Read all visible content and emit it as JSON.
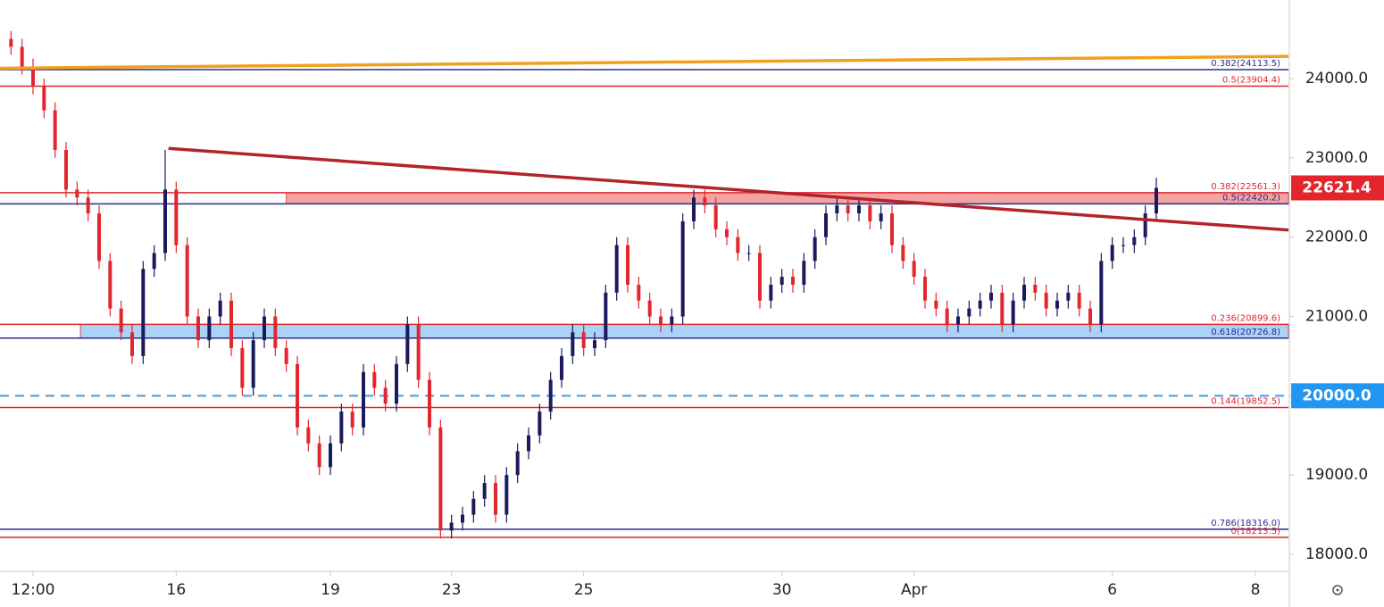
{
  "chart_data": {
    "type": "candlestick",
    "up_color": "#1b1a5c",
    "down_color": "#e3262e",
    "xlim": [
      -1,
      116
    ],
    "ylim": [
      17786,
      24991
    ],
    "xticks": [
      {
        "value": 2,
        "label": "12:00"
      },
      {
        "value": 15,
        "label": "16"
      },
      {
        "value": 29,
        "label": "19"
      },
      {
        "value": 40,
        "label": "23"
      },
      {
        "value": 52,
        "label": "25"
      },
      {
        "value": 70,
        "label": "30"
      },
      {
        "value": 82,
        "label": "Apr"
      },
      {
        "value": 100,
        "label": "6"
      },
      {
        "value": 113,
        "label": "8"
      }
    ],
    "yticks": [
      {
        "value": 18000,
        "label": "18000.0"
      },
      {
        "value": 19000,
        "label": "19000.0"
      },
      {
        "value": 20000,
        "label": "20000.0"
      },
      {
        "value": 21000,
        "label": "21000.0"
      },
      {
        "value": 22000,
        "label": "22000.0"
      },
      {
        "value": 23000,
        "label": "23000.0"
      },
      {
        "value": 24000,
        "label": "24000.0"
      }
    ],
    "open": [
      24500,
      24400,
      24150,
      23900,
      23600,
      23100,
      22600,
      22500,
      22300,
      21700,
      21100,
      20800,
      20500,
      21600,
      21800,
      22600,
      21900,
      21000,
      20700,
      21000,
      21200,
      20600,
      20100,
      20700,
      21000,
      20600,
      20400,
      19600,
      19400,
      19100,
      19400,
      19800,
      19600,
      20300,
      20100,
      19900,
      20400,
      20900,
      20200,
      19600,
      18300,
      18400,
      18500,
      18700,
      18900,
      18500,
      19000,
      19300,
      19500,
      19800,
      20200,
      20500,
      20800,
      20600,
      20700,
      21300,
      21900,
      21400,
      21200,
      21000,
      20900,
      21000,
      22200,
      22500,
      22400,
      22100,
      22000,
      21800,
      21800,
      21200,
      21400,
      21500,
      21400,
      21700,
      22000,
      22300,
      22400,
      22300,
      22400,
      22200,
      22300,
      21900,
      21700,
      21500,
      21200,
      21100,
      20900,
      21000,
      21100,
      21200,
      21300,
      20900,
      21200,
      21400,
      21300,
      21100,
      21200,
      21300,
      21100,
      20900,
      21700,
      21900,
      21900,
      22000,
      22300
    ],
    "high": [
      24600,
      24500,
      24250,
      24000,
      23700,
      23200,
      22700,
      22600,
      22400,
      21800,
      21200,
      20900,
      21700,
      21900,
      23100,
      22700,
      22000,
      21100,
      21100,
      21300,
      21300,
      20700,
      20800,
      21100,
      21100,
      20700,
      20500,
      19700,
      19500,
      19500,
      19900,
      19900,
      20400,
      20400,
      20200,
      20500,
      21000,
      21000,
      20300,
      19700,
      18500,
      18600,
      18800,
      19000,
      19000,
      19100,
      19400,
      19600,
      19900,
      20300,
      20600,
      20900,
      20900,
      20800,
      21400,
      22000,
      22000,
      21500,
      21300,
      21100,
      21100,
      22300,
      22600,
      22600,
      22500,
      22200,
      22100,
      21900,
      21900,
      21500,
      21600,
      21600,
      21800,
      22100,
      22400,
      22500,
      22500,
      22500,
      22500,
      22400,
      22400,
      22000,
      21800,
      21600,
      21300,
      21200,
      21100,
      21200,
      21300,
      21400,
      21400,
      21300,
      21500,
      21500,
      21400,
      21300,
      21400,
      21400,
      21200,
      21800,
      22000,
      22000,
      22100,
      22400,
      22750
    ],
    "low": [
      24300,
      24050,
      23800,
      23500,
      23000,
      22500,
      22400,
      22200,
      21600,
      21000,
      20700,
      20400,
      20400,
      21500,
      21700,
      21800,
      20900,
      20600,
      20600,
      20900,
      20500,
      20000,
      20000,
      20600,
      20500,
      20300,
      19500,
      19300,
      19000,
      19000,
      19300,
      19500,
      19500,
      20000,
      19800,
      19800,
      20300,
      20100,
      19500,
      18200,
      18200,
      18300,
      18400,
      18600,
      18400,
      18400,
      18900,
      19200,
      19400,
      19700,
      20100,
      20400,
      20500,
      20500,
      20600,
      21200,
      21300,
      21100,
      20900,
      20800,
      20800,
      20900,
      22100,
      22300,
      22000,
      21900,
      21700,
      21700,
      21100,
      21100,
      21300,
      21300,
      21300,
      21600,
      21900,
      22200,
      22200,
      22200,
      22100,
      22100,
      21800,
      21600,
      21400,
      21100,
      21000,
      20800,
      20800,
      20900,
      21000,
      21100,
      20800,
      20800,
      21100,
      21200,
      21000,
      21000,
      21100,
      21000,
      20800,
      20800,
      21600,
      21800,
      21800,
      21900,
      22200
    ],
    "close": [
      24400,
      24150,
      23900,
      23600,
      23100,
      22600,
      22500,
      22300,
      21700,
      21100,
      20800,
      20500,
      21600,
      21800,
      22600,
      21900,
      21000,
      20700,
      21000,
      21200,
      20600,
      20100,
      20700,
      21000,
      20600,
      20400,
      19600,
      19400,
      19100,
      19400,
      19800,
      19600,
      20300,
      20100,
      19900,
      20400,
      20900,
      20200,
      19600,
      18300,
      18400,
      18500,
      18700,
      18900,
      18500,
      19000,
      19300,
      19500,
      19800,
      20200,
      20500,
      20800,
      20600,
      20700,
      21300,
      21900,
      21400,
      21200,
      21000,
      20900,
      21000,
      22200,
      22500,
      22400,
      22100,
      22000,
      21800,
      21800,
      21200,
      21400,
      21500,
      21400,
      21700,
      22000,
      22300,
      22400,
      22300,
      22400,
      22200,
      22300,
      21900,
      21700,
      21500,
      21200,
      21100,
      20900,
      21000,
      21100,
      21200,
      21300,
      20900,
      21200,
      21400,
      21300,
      21100,
      21200,
      21300,
      21100,
      20900,
      21700,
      21900,
      21900,
      22000,
      22300,
      22621.4
    ],
    "levels": [
      {
        "label": "0.382(24113.5)",
        "value": 24113.5,
        "color": "#2b2b8c"
      },
      {
        "label": "0.5(23904.4)",
        "value": 23904.4,
        "color": "#e3262e"
      },
      {
        "label": "0.382(22561.3)",
        "value": 22561.3,
        "color": "#e3262e"
      },
      {
        "label": "0.5(22420.2)",
        "value": 22420.2,
        "color": "#2b2b8c"
      },
      {
        "label": "0.236(20899.6)",
        "value": 20899.6,
        "color": "#e3262e"
      },
      {
        "label": "0.618(20726.8)",
        "value": 20726.8,
        "color": "#2b2b8c"
      },
      {
        "label": "0.144(19852.5)",
        "value": 19852.5,
        "color": "#e3262e"
      },
      {
        "label": "0.786(18316.0)",
        "value": 18316.0,
        "color": "#2b2b8c"
      },
      {
        "label": "0(18213.5)",
        "value": 18213.5,
        "color": "#e3262e"
      }
    ],
    "zones": [
      {
        "start": 25,
        "from": 22420.2,
        "to": 22561.3,
        "color": "#f4a3a3"
      },
      {
        "start": 6.3,
        "from": 20726.8,
        "to": 20899.6,
        "color": "#a9d3f7"
      }
    ],
    "trendlines": [
      {
        "x": [
          -1,
          116
        ],
        "y": [
          24130,
          24280
        ],
        "color": "#f0a01e"
      },
      {
        "x": [
          14.3,
          116
        ],
        "y": [
          23120,
          22090
        ],
        "color": "#b3232a"
      }
    ],
    "dashed_level": {
      "value": 20000,
      "color": "#3d9ae8"
    },
    "price_tags": [
      {
        "value": 22621.4,
        "label": "22621.4",
        "color": "#e3262e"
      },
      {
        "value": 20000,
        "label": "20000.0",
        "color": "#2196f3"
      }
    ]
  }
}
